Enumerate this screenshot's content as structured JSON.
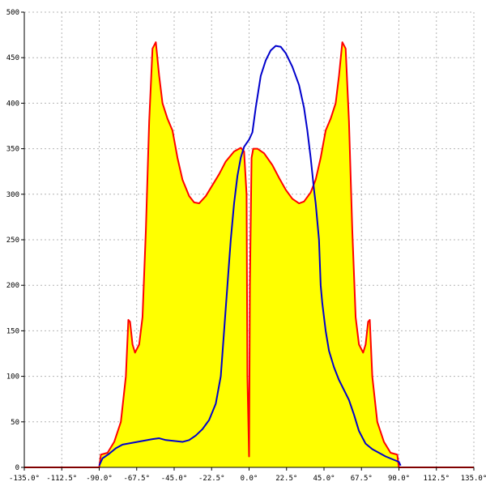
{
  "chart_data": {
    "type": "area",
    "title": "",
    "xlabel": "",
    "ylabel": "",
    "xlim": [
      -135,
      135
    ],
    "ylim": [
      0,
      500
    ],
    "grid": true,
    "x_tick_labels": [
      "-135.0°",
      "-112.5°",
      "-90.0°",
      "-67.5°",
      "-45.0°",
      "-22.5°",
      "0.0°",
      "22.5°",
      "45.0°",
      "67.5°",
      "90.0°",
      "112.5°",
      "135.0°"
    ],
    "x_ticks": [
      -135,
      -112.5,
      -90,
      -67.5,
      -45,
      -22.5,
      0,
      22.5,
      45,
      67.5,
      90,
      112.5,
      135
    ],
    "y_tick_labels": [
      "0",
      "50",
      "100",
      "150",
      "200",
      "250",
      "300",
      "350",
      "400",
      "450",
      "500"
    ],
    "y_ticks": [
      0,
      50,
      100,
      150,
      200,
      250,
      300,
      350,
      400,
      450,
      500
    ],
    "series": [
      {
        "color": "#ff0000",
        "fill": "#ffff00",
        "points": [
          [
            -135,
            0
          ],
          [
            -90,
            0
          ],
          [
            -89,
            14
          ],
          [
            -85,
            16
          ],
          [
            -81,
            28
          ],
          [
            -77,
            50
          ],
          [
            -74,
            100
          ],
          [
            -72.5,
            162
          ],
          [
            -71.5,
            160
          ],
          [
            -70,
            135
          ],
          [
            -68.5,
            126
          ],
          [
            -66,
            135
          ],
          [
            -64,
            165
          ],
          [
            -62,
            260
          ],
          [
            -60,
            380
          ],
          [
            -58,
            460
          ],
          [
            -56,
            467
          ],
          [
            -54,
            430
          ],
          [
            -52,
            400
          ],
          [
            -49,
            383
          ],
          [
            -46,
            370
          ],
          [
            -43,
            340
          ],
          [
            -40,
            316
          ],
          [
            -36,
            298
          ],
          [
            -33,
            291
          ],
          [
            -30,
            290
          ],
          [
            -26,
            298
          ],
          [
            -22,
            310
          ],
          [
            -18,
            322
          ],
          [
            -14,
            336
          ],
          [
            -9,
            347
          ],
          [
            -5,
            351
          ],
          [
            -3,
            347
          ],
          [
            -1.5,
            300
          ],
          [
            -1,
            100
          ],
          [
            0,
            12
          ],
          [
            0.5,
            200
          ],
          [
            1.5,
            340
          ],
          [
            2.5,
            350
          ],
          [
            5,
            350
          ],
          [
            9,
            345
          ],
          [
            14,
            332
          ],
          [
            18,
            318
          ],
          [
            22,
            305
          ],
          [
            26,
            295
          ],
          [
            30,
            290
          ],
          [
            33,
            292
          ],
          [
            37,
            302
          ],
          [
            40,
            316
          ],
          [
            43,
            340
          ],
          [
            46,
            370
          ],
          [
            49,
            383
          ],
          [
            52,
            400
          ],
          [
            54,
            430
          ],
          [
            56,
            467
          ],
          [
            58,
            460
          ],
          [
            60,
            380
          ],
          [
            62,
            260
          ],
          [
            64,
            165
          ],
          [
            66,
            135
          ],
          [
            68.5,
            126
          ],
          [
            70,
            135
          ],
          [
            71.5,
            160
          ],
          [
            72.5,
            162
          ],
          [
            74,
            100
          ],
          [
            77,
            50
          ],
          [
            81,
            28
          ],
          [
            85,
            16
          ],
          [
            89,
            14
          ],
          [
            90,
            0
          ],
          [
            135,
            0
          ]
        ]
      },
      {
        "color": "#0000cc",
        "fill": "none",
        "points": [
          [
            -90,
            2
          ],
          [
            -88,
            10
          ],
          [
            -84,
            15
          ],
          [
            -80,
            21
          ],
          [
            -76,
            25
          ],
          [
            -70,
            27
          ],
          [
            -64,
            29
          ],
          [
            -58,
            31
          ],
          [
            -54,
            32
          ],
          [
            -50,
            30
          ],
          [
            -45,
            29
          ],
          [
            -40,
            28
          ],
          [
            -36,
            30
          ],
          [
            -32,
            35
          ],
          [
            -28,
            42
          ],
          [
            -24,
            52
          ],
          [
            -20,
            70
          ],
          [
            -17,
            100
          ],
          [
            -15,
            150
          ],
          [
            -13,
            200
          ],
          [
            -11,
            250
          ],
          [
            -9,
            290
          ],
          [
            -7,
            320
          ],
          [
            -5,
            340
          ],
          [
            -3,
            352
          ],
          [
            0,
            360
          ],
          [
            2,
            368
          ],
          [
            4,
            395
          ],
          [
            7,
            430
          ],
          [
            10,
            447
          ],
          [
            13,
            458
          ],
          [
            16,
            463
          ],
          [
            19,
            462
          ],
          [
            22,
            455
          ],
          [
            26,
            440
          ],
          [
            30,
            420
          ],
          [
            33,
            395
          ],
          [
            35,
            370
          ],
          [
            37,
            340
          ],
          [
            39,
            305
          ],
          [
            40,
            290
          ],
          [
            41,
            270
          ],
          [
            42,
            250
          ],
          [
            43,
            200
          ],
          [
            44,
            180
          ],
          [
            46,
            150
          ],
          [
            48,
            128
          ],
          [
            51,
            110
          ],
          [
            54,
            96
          ],
          [
            57,
            85
          ],
          [
            60,
            74
          ],
          [
            63,
            58
          ],
          [
            66,
            40
          ],
          [
            70,
            26
          ],
          [
            74,
            20
          ],
          [
            78,
            16
          ],
          [
            82,
            12
          ],
          [
            86,
            9
          ],
          [
            90,
            6
          ],
          [
            91,
            2
          ]
        ]
      }
    ]
  }
}
